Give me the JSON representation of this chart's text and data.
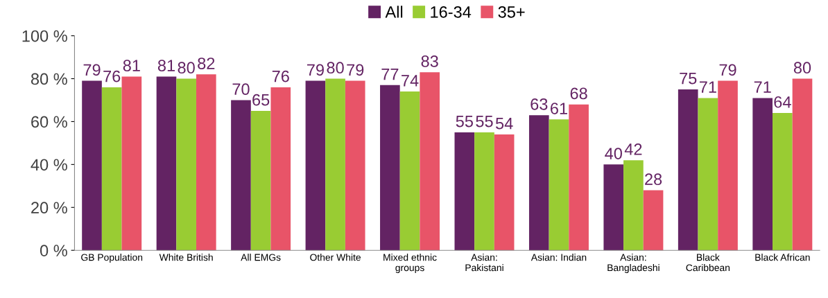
{
  "chart_data": {
    "type": "bar",
    "categories": [
      "GB Population",
      "White British",
      "All EMGs",
      "Other White",
      "Mixed ethnic\ngroups",
      "Asian:\nPakistani",
      "Asian: Indian",
      "Asian:\nBangladeshi",
      "Black\nCaribbean",
      "Black African"
    ],
    "series": [
      {
        "name": "All",
        "color": "#632363",
        "values": [
          79,
          81,
          70,
          79,
          77,
          55,
          63,
          40,
          75,
          71
        ]
      },
      {
        "name": "16-34",
        "color": "#99cc33",
        "values": [
          76,
          80,
          65,
          80,
          74,
          55,
          61,
          42,
          71,
          64
        ]
      },
      {
        "name": "35+",
        "color": "#e85468",
        "values": [
          81,
          82,
          76,
          79,
          83,
          54,
          68,
          28,
          79,
          80
        ]
      }
    ],
    "ylim": [
      0,
      100
    ],
    "yticks": [
      {
        "value": 0,
        "label": "0 %"
      },
      {
        "value": 20,
        "label": "20 %"
      },
      {
        "value": 40,
        "label": "40 %"
      },
      {
        "value": 60,
        "label": "60 %"
      },
      {
        "value": 80,
        "label": "80 %"
      },
      {
        "value": 100,
        "label": "100 %"
      }
    ],
    "data_labels": true,
    "legend": "top",
    "grid": false
  }
}
